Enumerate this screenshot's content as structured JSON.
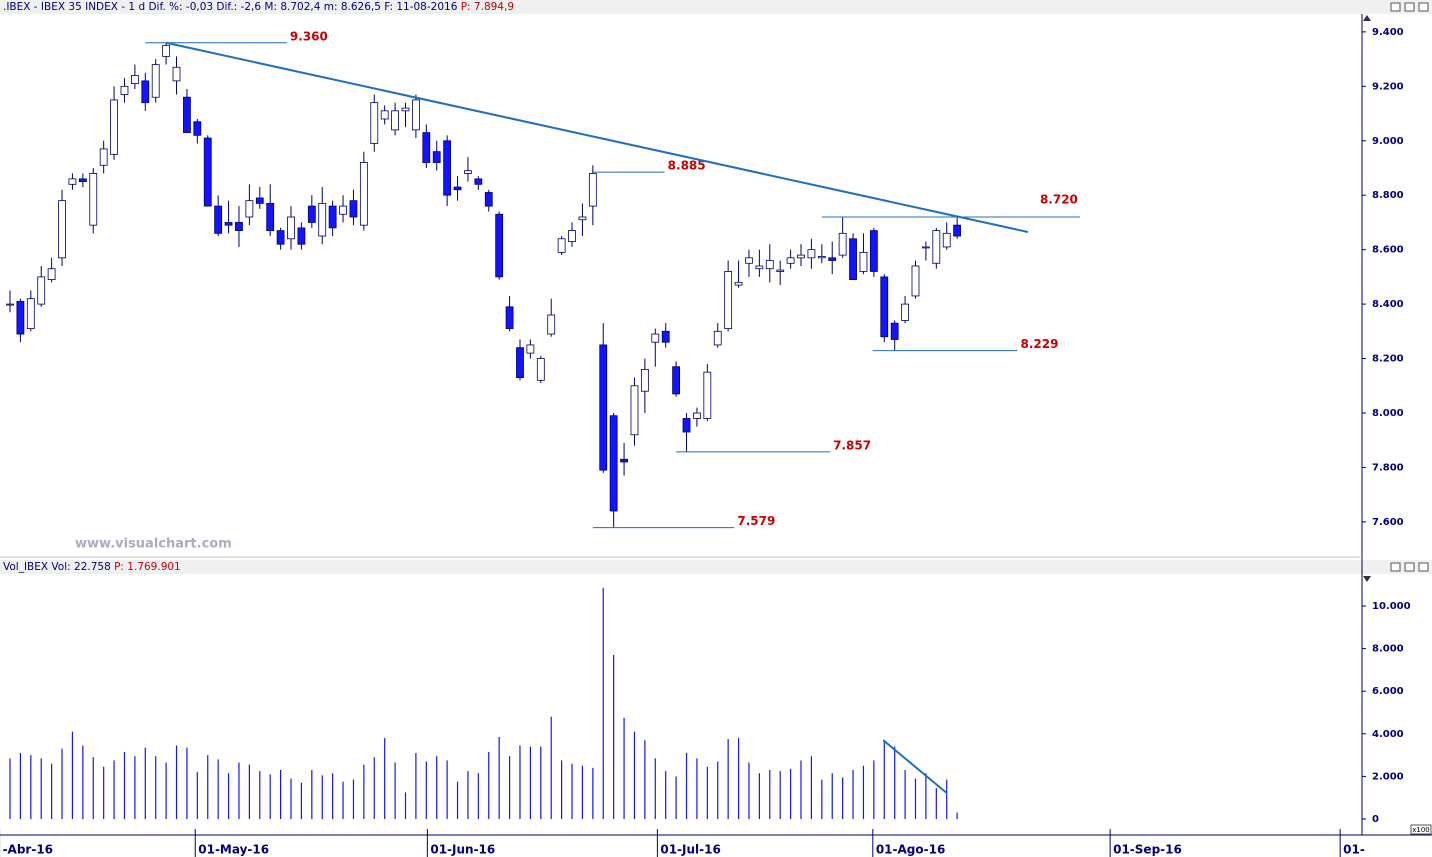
{
  "chart_data": [
    {
      "type": "candlestick",
      "title": ".IBEX - IBEX 35 INDEX - 1 d  Dif. %: -0,03  Dif.: -2,6  M: 8.702,4  m: 8.626,5  F: 11-08-2016",
      "title_price": "P: 7.894,9",
      "watermark": "www.visualchart.com",
      "color_down": "#1414ff",
      "color_up": "#ffffff",
      "edge_color": "#000070",
      "open": [
        8400,
        8410,
        8310,
        8400,
        8490,
        8570,
        8840,
        8860,
        8690,
        8910,
        8950,
        9170,
        9210,
        9220,
        9160,
        9310,
        9220,
        9160,
        9070,
        9010,
        8760,
        8700,
        8700,
        8720,
        8790,
        8770,
        8670,
        8640,
        8680,
        8760,
        8650,
        8760,
        8730,
        8780,
        8690,
        8990,
        9080,
        9040,
        9110,
        9040,
        9030,
        8960,
        9000,
        8830,
        8880,
        8860,
        8810,
        8730,
        8390,
        8240,
        8220,
        8120,
        8290,
        8590,
        8630,
        8710,
        8760,
        8250,
        7990,
        7830,
        7920,
        8080,
        8260,
        8300,
        8170,
        7980,
        7980,
        7980,
        8250,
        8310,
        8470,
        8550,
        8530,
        8530,
        8520,
        8550,
        8570,
        8570,
        8570,
        8570,
        8580,
        8640,
        8520,
        8670,
        8500,
        8330,
        8340,
        8430,
        8610,
        8550,
        8610,
        8690
      ],
      "high": [
        8450,
        8420,
        8450,
        8540,
        8570,
        8820,
        8880,
        8880,
        8900,
        9000,
        9200,
        9230,
        9280,
        9250,
        9300,
        9360,
        9310,
        9190,
        9080,
        9020,
        8800,
        8780,
        8760,
        8840,
        8830,
        8840,
        8680,
        8760,
        8700,
        8800,
        8830,
        8780,
        8800,
        8820,
        8960,
        9170,
        9130,
        9140,
        9140,
        9170,
        9060,
        9000,
        9020,
        8870,
        8940,
        8870,
        8820,
        8740,
        8430,
        8270,
        8270,
        8210,
        8420,
        8650,
        8700,
        8770,
        8910,
        8330,
        8000,
        7890,
        8130,
        8200,
        8310,
        8330,
        8190,
        8000,
        8020,
        8180,
        8330,
        8560,
        8560,
        8600,
        8600,
        8620,
        8560,
        8600,
        8620,
        8640,
        8620,
        8630,
        8720,
        8660,
        8660,
        8680,
        8510,
        8340,
        8430,
        8560,
        8630,
        8680,
        8700,
        8720
      ],
      "low": [
        8370,
        8260,
        8300,
        8390,
        8480,
        8540,
        8820,
        8830,
        8660,
        8880,
        8930,
        9140,
        9190,
        9110,
        9140,
        9280,
        9170,
        9030,
        8990,
        8760,
        8650,
        8660,
        8610,
        8690,
        8750,
        8650,
        8600,
        8600,
        8600,
        8680,
        8620,
        8650,
        8700,
        8690,
        8670,
        8960,
        9060,
        9020,
        9050,
        9010,
        8900,
        8890,
        8760,
        8780,
        8850,
        8820,
        8740,
        8490,
        8300,
        8120,
        8200,
        8110,
        8280,
        8580,
        8610,
        8650,
        8690,
        7780,
        7579,
        7770,
        7880,
        8000,
        8170,
        8240,
        8060,
        7857,
        7950,
        7970,
        8240,
        8300,
        8460,
        8500,
        8500,
        8480,
        8470,
        8530,
        8540,
        8530,
        8550,
        8510,
        8570,
        8490,
        8510,
        8500,
        8260,
        8229,
        8330,
        8420,
        8560,
        8530,
        8600,
        8640
      ],
      "close": [
        8400,
        8290,
        8420,
        8500,
        8530,
        8780,
        8860,
        8850,
        8880,
        8970,
        9150,
        9200,
        9240,
        9140,
        9280,
        9350,
        9270,
        9030,
        9020,
        8760,
        8660,
        8690,
        8670,
        8780,
        8770,
        8670,
        8620,
        8720,
        8620,
        8700,
        8770,
        8680,
        8760,
        8720,
        8920,
        9140,
        9110,
        9110,
        9120,
        9150,
        8920,
        8920,
        8800,
        8820,
        8890,
        8840,
        8760,
        8500,
        8310,
        8130,
        8250,
        8200,
        8360,
        8640,
        8670,
        8720,
        8880,
        7790,
        7640,
        7820,
        8100,
        8160,
        8290,
        8260,
        8070,
        7930,
        8000,
        8150,
        8300,
        8520,
        8480,
        8570,
        8540,
        8560,
        8525,
        8570,
        8580,
        8600,
        8575,
        8560,
        8660,
        8490,
        8590,
        8520,
        8280,
        8270,
        8400,
        8540,
        8610,
        8670,
        8660,
        8650
      ],
      "xlim": [
        -0.96,
        129.9
      ],
      "xticks": [
        {
          "value": -1,
          "label": "-Abr-16"
        },
        {
          "value": 17.8,
          "label": "01-May-16"
        },
        {
          "value": 40.1,
          "label": "01-Jun-16"
        },
        {
          "value": 62.2,
          "label": "01-Jul-16"
        },
        {
          "value": 82.9,
          "label": "01-Ago-16"
        },
        {
          "value": 105.7,
          "label": "01-Sep-16"
        },
        {
          "value": 127.8,
          "label": "01-"
        }
      ],
      "ylim": [
        7471,
        9462
      ],
      "yticks": [
        {
          "value": 7600,
          "label": "7.600"
        },
        {
          "value": 7800,
          "label": "7.800"
        },
        {
          "value": 8000,
          "label": "8.000"
        },
        {
          "value": 8200,
          "label": "8.200"
        },
        {
          "value": 8400,
          "label": "8.400"
        },
        {
          "value": 8600,
          "label": "8.600"
        },
        {
          "value": 8800,
          "label": "8.800"
        },
        {
          "value": 9000,
          "label": "9.000"
        },
        {
          "value": 9200,
          "label": "9.200"
        },
        {
          "value": 9400,
          "label": "9.400"
        }
      ],
      "trend_color": "#1f6fbf",
      "trendlines": [
        {
          "x": [
            15,
            97.8
          ],
          "y": [
            9360,
            8665
          ]
        }
      ],
      "annotations": [
        {
          "value": 9360,
          "label": "9.360",
          "x": [
            13,
            26.6
          ]
        },
        {
          "value": 8885,
          "label": "8.885",
          "x": [
            55.9,
            62.9
          ]
        },
        {
          "value": 8720,
          "label": "8.720",
          "x": [
            78,
            102.8
          ]
        },
        {
          "value": 8229,
          "label": "8.229",
          "x": [
            82.9,
            96.8
          ]
        },
        {
          "value": 7857,
          "label": "7.857",
          "x": [
            64,
            78.8
          ]
        },
        {
          "value": 7579,
          "label": "7.579",
          "x": [
            56,
            69.6
          ]
        }
      ]
    },
    {
      "type": "bar",
      "title": "Vol_IBEX Vol: 22.758",
      "title_price": "P: 1.769.901",
      "unit": "x100",
      "color": "#1414ff",
      "values": [
        2850,
        3100,
        3000,
        2850,
        2600,
        3300,
        4100,
        3450,
        2900,
        2450,
        2750,
        3150,
        2950,
        3350,
        2950,
        2650,
        3450,
        3350,
        2200,
        3000,
        2800,
        2150,
        2650,
        2550,
        2250,
        2100,
        2300,
        1900,
        1700,
        2300,
        2050,
        2150,
        1750,
        1850,
        2550,
        2900,
        3800,
        2650,
        1250,
        3100,
        2700,
        2950,
        2750,
        1750,
        2250,
        2150,
        3150,
        3850,
        2950,
        3450,
        3400,
        3400,
        4800,
        2750,
        2600,
        2500,
        2400,
        10850,
        7700,
        4750,
        4100,
        3700,
        2850,
        2250,
        2000,
        3100,
        2850,
        2450,
        2700,
        3750,
        3800,
        2650,
        2150,
        2300,
        2250,
        2350,
        2750,
        2950,
        1850,
        2150,
        1950,
        2300,
        2500,
        2750,
        3700,
        3400,
        2300,
        1900,
        2150,
        1450,
        1850,
        300
      ],
      "xlim": [
        -0.96,
        129.9
      ],
      "ylim": [
        -751,
        11455
      ],
      "yticks": [
        0,
        {
          "value": 2000,
          "label": "2.000"
        },
        {
          "value": 4000,
          "label": "4.000"
        },
        {
          "value": 6000,
          "label": "6.000"
        },
        {
          "value": 8000,
          "label": "8.000"
        },
        {
          "value": 10000,
          "label": "10.000"
        }
      ],
      "trend_color": "#1f6fbf",
      "trendlines": [
        {
          "x": [
            83.9,
            90
          ],
          "y": [
            3700,
            1220
          ]
        }
      ]
    }
  ]
}
